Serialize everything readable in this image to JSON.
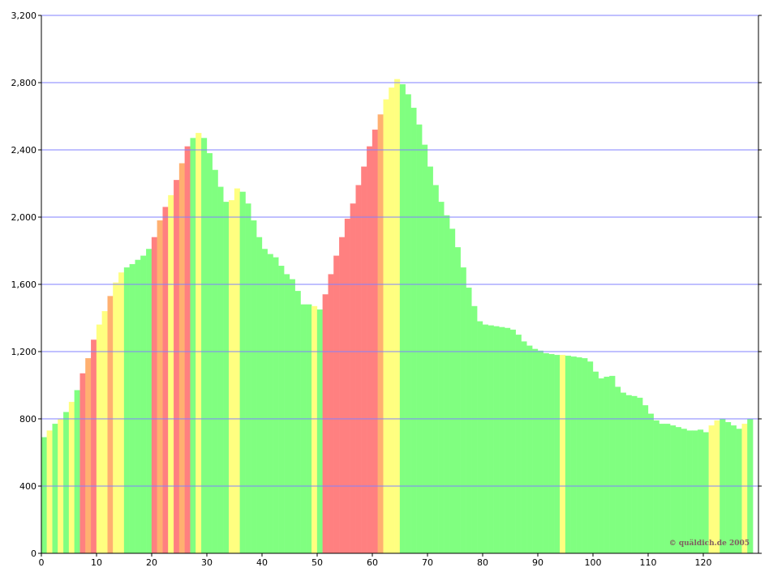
{
  "chart_data": {
    "type": "bar",
    "x": [
      0,
      1,
      2,
      3,
      4,
      5,
      6,
      7,
      8,
      9,
      10,
      11,
      12,
      13,
      14,
      15,
      16,
      17,
      18,
      19,
      20,
      21,
      22,
      23,
      24,
      25,
      26,
      27,
      28,
      29,
      30,
      31,
      32,
      33,
      34,
      35,
      36,
      37,
      38,
      39,
      40,
      41,
      42,
      43,
      44,
      45,
      46,
      47,
      48,
      49,
      50,
      51,
      52,
      53,
      54,
      55,
      56,
      57,
      58,
      59,
      60,
      61,
      62,
      63,
      64,
      65,
      66,
      67,
      68,
      69,
      70,
      71,
      72,
      73,
      74,
      75,
      76,
      77,
      78,
      79,
      80,
      81,
      82,
      83,
      84,
      85,
      86,
      87,
      88,
      89,
      90,
      91,
      92,
      93,
      94,
      95,
      96,
      97,
      98,
      99,
      100,
      101,
      102,
      103,
      104,
      105,
      106,
      107,
      108,
      109,
      110,
      111,
      112,
      113,
      114,
      115,
      116,
      117,
      118,
      119,
      120,
      121,
      122,
      123,
      124,
      125,
      126,
      127,
      128
    ],
    "values": [
      690,
      730,
      770,
      800,
      840,
      900,
      970,
      1070,
      1160,
      1270,
      1360,
      1440,
      1530,
      1610,
      1670,
      1700,
      1720,
      1745,
      1770,
      1810,
      1880,
      1980,
      2060,
      2130,
      2220,
      2320,
      2420,
      2470,
      2500,
      2470,
      2380,
      2280,
      2180,
      2090,
      2100,
      2170,
      2150,
      2080,
      1980,
      1880,
      1810,
      1780,
      1760,
      1710,
      1660,
      1630,
      1560,
      1480,
      1480,
      1470,
      1450,
      1540,
      1660,
      1770,
      1880,
      1990,
      2080,
      2190,
      2300,
      2420,
      2520,
      2610,
      2700,
      2770,
      2820,
      2790,
      2730,
      2650,
      2550,
      2430,
      2300,
      2190,
      2090,
      2010,
      1930,
      1820,
      1700,
      1580,
      1470,
      1380,
      1360,
      1355,
      1350,
      1345,
      1340,
      1330,
      1300,
      1260,
      1235,
      1215,
      1205,
      1190,
      1185,
      1180,
      1180,
      1175,
      1170,
      1165,
      1160,
      1140,
      1080,
      1040,
      1050,
      1055,
      990,
      955,
      940,
      935,
      925,
      880,
      830,
      790,
      770,
      770,
      760,
      750,
      740,
      730,
      730,
      735,
      720,
      760,
      790,
      800,
      780,
      760,
      740,
      770,
      800
    ],
    "colors": [
      "#80ff80",
      "#ffff80",
      "#80ff80",
      "#ffff80",
      "#80ff80",
      "#ffff80",
      "#80ff80",
      "#ff8080",
      "#ffb070",
      "#ff8080",
      "#ffff80",
      "#ffff80",
      "#ffb070",
      "#ffff80",
      "#ffff80",
      "#80ff80",
      "#80ff80",
      "#80ff80",
      "#80ff80",
      "#80ff80",
      "#ff8080",
      "#ffb070",
      "#ff8080",
      "#ffff80",
      "#ff8080",
      "#ffb070",
      "#ff8080",
      "#80ff80",
      "#ffff80",
      "#80ff80",
      "#80ff80",
      "#80ff80",
      "#80ff80",
      "#80ff80",
      "#ffff80",
      "#ffff80",
      "#80ff80",
      "#80ff80",
      "#80ff80",
      "#80ff80",
      "#80ff80",
      "#80ff80",
      "#80ff80",
      "#80ff80",
      "#80ff80",
      "#80ff80",
      "#80ff80",
      "#80ff80",
      "#80ff80",
      "#ffff80",
      "#80ff80",
      "#ff8080",
      "#ff8080",
      "#ff8080",
      "#ff8080",
      "#ff8080",
      "#ff8080",
      "#ff8080",
      "#ff8080",
      "#ff8080",
      "#ff8080",
      "#ffb070",
      "#ffff80",
      "#ffff80",
      "#ffff80",
      "#80ff80",
      "#80ff80",
      "#80ff80",
      "#80ff80",
      "#80ff80",
      "#80ff80",
      "#80ff80",
      "#80ff80",
      "#80ff80",
      "#80ff80",
      "#80ff80",
      "#80ff80",
      "#80ff80",
      "#80ff80",
      "#80ff80",
      "#80ff80",
      "#80ff80",
      "#80ff80",
      "#80ff80",
      "#80ff80",
      "#80ff80",
      "#80ff80",
      "#80ff80",
      "#80ff80",
      "#80ff80",
      "#80ff80",
      "#80ff80",
      "#80ff80",
      "#80ff80",
      "#ffff80",
      "#80ff80",
      "#80ff80",
      "#80ff80",
      "#80ff80",
      "#80ff80",
      "#80ff80",
      "#80ff80",
      "#80ff80",
      "#80ff80",
      "#80ff80",
      "#80ff80",
      "#80ff80",
      "#80ff80",
      "#80ff80",
      "#80ff80",
      "#80ff80",
      "#80ff80",
      "#80ff80",
      "#80ff80",
      "#80ff80",
      "#80ff80",
      "#80ff80",
      "#80ff80",
      "#80ff80",
      "#80ff80",
      "#80ff80",
      "#ffff80",
      "#ffff80",
      "#80ff80",
      "#80ff80",
      "#80ff80",
      "#80ff80",
      "#ffff80",
      "#80ff80"
    ],
    "xlim": [
      0,
      130
    ],
    "xticks": [
      0,
      10,
      20,
      30,
      40,
      50,
      60,
      70,
      80,
      90,
      100,
      110,
      120
    ],
    "ylim": [
      0,
      3200
    ],
    "yticks": [
      0,
      400,
      800,
      {
        "value": 1200,
        "label": "1,200"
      },
      {
        "value": 1600,
        "label": "1,600"
      },
      {
        "value": 2000,
        "label": "2,000"
      },
      {
        "value": 2400,
        "label": "2,400"
      },
      {
        "value": 2800,
        "label": "2,800"
      },
      {
        "value": 3200,
        "label": "3,200"
      }
    ],
    "grid": true,
    "grid_color": "#8080ff",
    "watermark": "© quäldich.de 2005"
  }
}
